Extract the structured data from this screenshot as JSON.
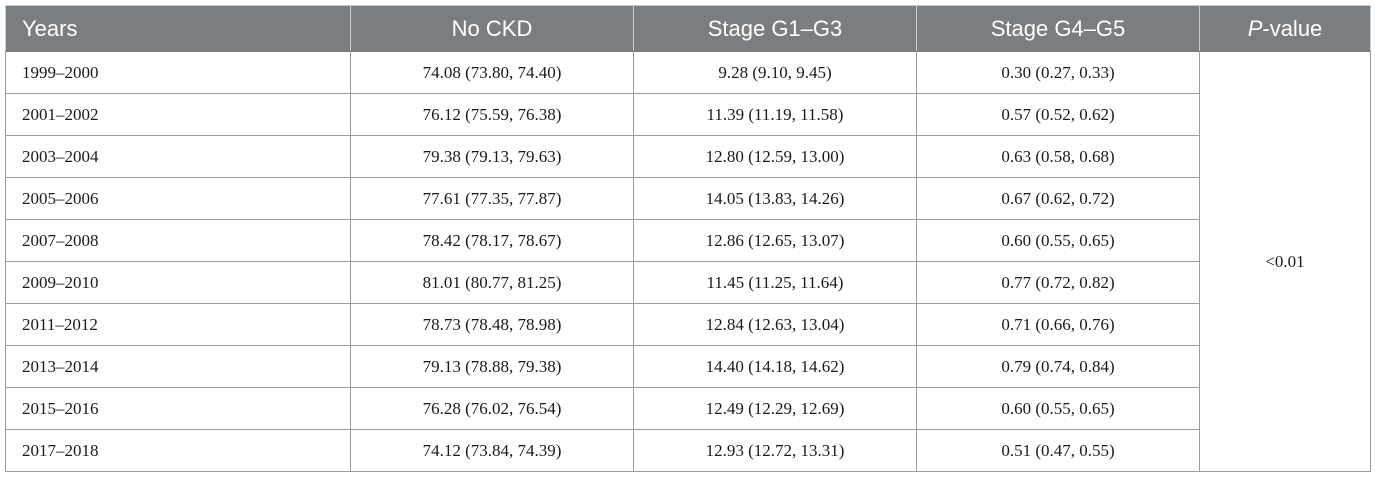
{
  "table": {
    "headers": {
      "years": "Years",
      "no_ckd": "No CKD",
      "stage_g1_g3": "Stage G1–G3",
      "stage_g4_g5": "Stage G4–G5",
      "p_value_italic": "P",
      "p_value_rest": "-value"
    },
    "p_value": "<0.01",
    "rows": [
      {
        "years": "1999–2000",
        "no_ckd": "74.08 (73.80, 74.40)",
        "g1_g3": "9.28 (9.10, 9.45)",
        "g4_g5": "0.30 (0.27, 0.33)"
      },
      {
        "years": "2001–2002",
        "no_ckd": "76.12 (75.59, 76.38)",
        "g1_g3": "11.39 (11.19, 11.58)",
        "g4_g5": "0.57 (0.52, 0.62)"
      },
      {
        "years": "2003–2004",
        "no_ckd": "79.38 (79.13, 79.63)",
        "g1_g3": "12.80 (12.59, 13.00)",
        "g4_g5": "0.63 (0.58, 0.68)"
      },
      {
        "years": "2005–2006",
        "no_ckd": "77.61 (77.35, 77.87)",
        "g1_g3": "14.05 (13.83, 14.26)",
        "g4_g5": "0.67 (0.62, 0.72)"
      },
      {
        "years": "2007–2008",
        "no_ckd": "78.42 (78.17, 78.67)",
        "g1_g3": "12.86 (12.65, 13.07)",
        "g4_g5": "0.60 (0.55, 0.65)"
      },
      {
        "years": "2009–2010",
        "no_ckd": "81.01 (80.77, 81.25)",
        "g1_g3": "11.45 (11.25, 11.64)",
        "g4_g5": "0.77 (0.72, 0.82)"
      },
      {
        "years": "2011–2012",
        "no_ckd": "78.73 (78.48, 78.98)",
        "g1_g3": "12.84 (12.63, 13.04)",
        "g4_g5": "0.71 (0.66, 0.76)"
      },
      {
        "years": "2013–2014",
        "no_ckd": "79.13 (78.88, 79.38)",
        "g1_g3": "14.40 (14.18, 14.62)",
        "g4_g5": "0.79 (0.74, 0.84)"
      },
      {
        "years": "2015–2016",
        "no_ckd": "76.28 (76.02, 76.54)",
        "g1_g3": "12.49 (12.29, 12.69)",
        "g4_g5": "0.60 (0.55, 0.65)"
      },
      {
        "years": "2017–2018",
        "no_ckd": "74.12 (73.84, 74.39)",
        "g1_g3": "12.93 (12.72, 13.31)",
        "g4_g5": "0.51 (0.47, 0.55)"
      }
    ]
  },
  "colors": {
    "header_bg": "#7b7e80",
    "header_text": "#ffffff",
    "border": "#9a9c9e"
  }
}
